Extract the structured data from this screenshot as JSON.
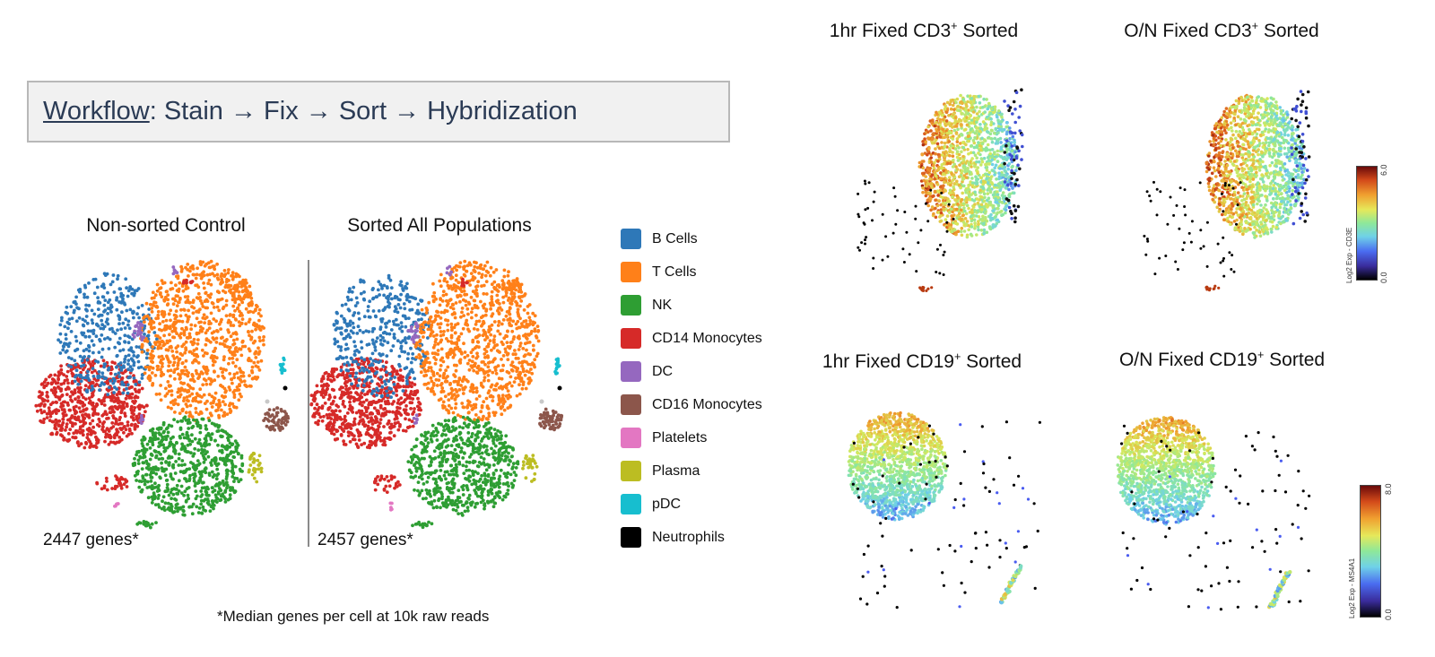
{
  "workflow": {
    "link": "Workflow",
    "text": ": Stain → Fix → Sort → Hybridization"
  },
  "left_panels": [
    {
      "title": "Non-sorted Control",
      "genes": "2447 genes*"
    },
    {
      "title": "Sorted All Populations",
      "genes": "2457 genes*"
    }
  ],
  "legend": [
    {
      "label": "B Cells",
      "color": "#2e78b8"
    },
    {
      "label": "T Cells",
      "color": "#ff8019"
    },
    {
      "label": "NK",
      "color": "#2e9e33"
    },
    {
      "label": "CD14 Monocytes",
      "color": "#d62a28"
    },
    {
      "label": "DC",
      "color": "#9568bf"
    },
    {
      "label": "CD16 Monocytes",
      "color": "#8c564b"
    },
    {
      "label": "Platelets",
      "color": "#e377c2"
    },
    {
      "label": "Plasma",
      "color": "#bcbd22"
    },
    {
      "label": "pDC",
      "color": "#17becf"
    },
    {
      "label": "Neutrophils",
      "color": "#000000"
    }
  ],
  "footnote": "*Median genes per cell at 10k raw reads",
  "right_panels": [
    {
      "title_pre": "1hr Fixed CD3",
      "sup": "+",
      "title_post": " Sorted"
    },
    {
      "title_pre": "O/N Fixed CD3",
      "sup": "+",
      "title_post": " Sorted"
    },
    {
      "title_pre": "1hr Fixed CD19",
      "sup": "+",
      "title_post": " Sorted"
    },
    {
      "title_pre": "O/N Fixed CD19",
      "sup": "+",
      "title_post": " Sorted"
    }
  ],
  "colorbars": [
    {
      "label": "Log2 Exp - CD3E",
      "min": "0.0",
      "max": "6.0"
    },
    {
      "label": "Log2 Exp - MS4A1",
      "min": "0.0",
      "max": "8.0"
    }
  ],
  "chart_data": [
    {
      "type": "scatter",
      "title": "Non-sorted Control",
      "series": [
        {
          "name": "B Cells"
        },
        {
          "name": "T Cells"
        },
        {
          "name": "NK"
        },
        {
          "name": "CD14 Monocytes"
        },
        {
          "name": "DC"
        },
        {
          "name": "CD16 Monocytes"
        },
        {
          "name": "Platelets"
        },
        {
          "name": "Plasma"
        },
        {
          "name": "pDC"
        },
        {
          "name": "Neutrophils"
        }
      ],
      "annotation": "2447 genes*"
    },
    {
      "type": "scatter",
      "title": "Sorted All Populations",
      "series": [
        {
          "name": "B Cells"
        },
        {
          "name": "T Cells"
        },
        {
          "name": "NK"
        },
        {
          "name": "CD14 Monocytes"
        },
        {
          "name": "DC"
        },
        {
          "name": "CD16 Monocytes"
        },
        {
          "name": "Platelets"
        },
        {
          "name": "Plasma"
        },
        {
          "name": "pDC"
        },
        {
          "name": "Neutrophils"
        }
      ],
      "annotation": "2457 genes*"
    },
    {
      "type": "scatter",
      "title": "1hr Fixed CD3+ Sorted",
      "color_scale": "Log2 Exp - CD3E",
      "range": [
        0.0,
        6.0
      ]
    },
    {
      "type": "scatter",
      "title": "O/N Fixed CD3+ Sorted",
      "color_scale": "Log2 Exp - CD3E",
      "range": [
        0.0,
        6.0
      ]
    },
    {
      "type": "scatter",
      "title": "1hr Fixed CD19+ Sorted",
      "color_scale": "Log2 Exp - MS4A1",
      "range": [
        0.0,
        8.0
      ]
    },
    {
      "type": "scatter",
      "title": "O/N Fixed CD19+ Sorted",
      "color_scale": "Log2 Exp - MS4A1",
      "range": [
        0.0,
        8.0
      ]
    }
  ]
}
